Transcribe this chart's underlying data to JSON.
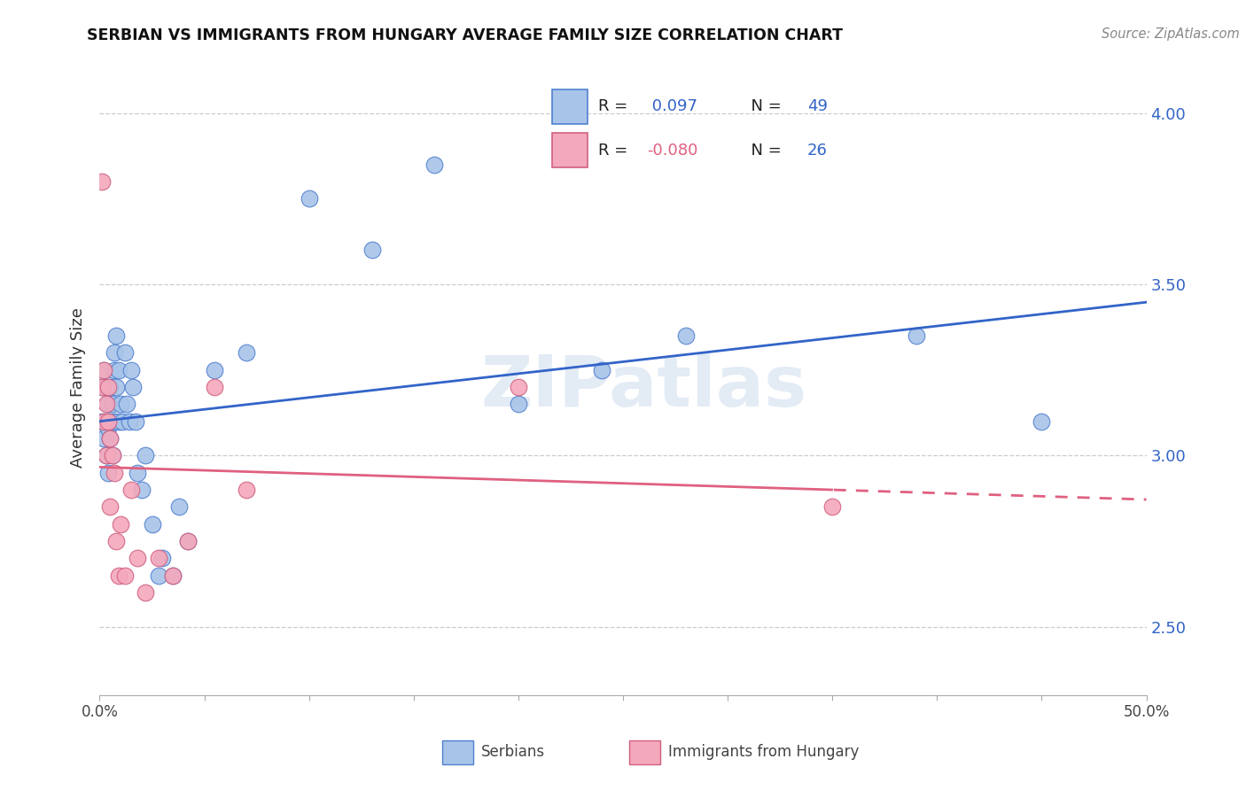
{
  "title": "SERBIAN VS IMMIGRANTS FROM HUNGARY AVERAGE FAMILY SIZE CORRELATION CHART",
  "source": "Source: ZipAtlas.com",
  "ylabel": "Average Family Size",
  "watermark": "ZIPatlas",
  "legend_serbian_R": "0.097",
  "legend_serbian_N": "49",
  "legend_hungary_R": "-0.080",
  "legend_hungary_N": "26",
  "blue_scatter_color": "#a8c4e8",
  "pink_scatter_color": "#f4a8bc",
  "blue_line_color": "#3264c8",
  "pink_line_color": "#e06080",
  "blue_edge_color": "#5080d0",
  "pink_edge_color": "#d06080",
  "ylim_min": 2.3,
  "ylim_max": 4.1,
  "xlim_min": 0.0,
  "xlim_max": 0.5,
  "yticks": [
    2.5,
    3.0,
    3.5,
    4.0
  ],
  "xticks": [
    0.0,
    0.05,
    0.1,
    0.15,
    0.2,
    0.25,
    0.3,
    0.35,
    0.4,
    0.45,
    0.5
  ],
  "xtick_labels": [
    "0.0%",
    "",
    "",
    "",
    "",
    "",
    "",
    "",
    "",
    "",
    "50.0%"
  ],
  "right_ytick_labels": [
    "2.50",
    "3.00",
    "3.50",
    "4.00"
  ],
  "serbian_points_x": [
    0.001,
    0.001,
    0.002,
    0.002,
    0.003,
    0.003,
    0.003,
    0.004,
    0.004,
    0.004,
    0.005,
    0.005,
    0.005,
    0.006,
    0.006,
    0.007,
    0.007,
    0.007,
    0.008,
    0.008,
    0.009,
    0.009,
    0.01,
    0.011,
    0.012,
    0.013,
    0.014,
    0.015,
    0.016,
    0.017,
    0.018,
    0.02,
    0.022,
    0.025,
    0.028,
    0.03,
    0.035,
    0.038,
    0.042,
    0.055,
    0.07,
    0.1,
    0.13,
    0.16,
    0.2,
    0.24,
    0.28,
    0.39,
    0.45
  ],
  "serbian_points_y": [
    3.1,
    3.2,
    3.05,
    3.25,
    3.1,
    3.0,
    3.2,
    3.15,
    3.08,
    2.95,
    3.2,
    3.1,
    3.05,
    3.15,
    3.0,
    3.3,
    3.1,
    3.25,
    3.35,
    3.2,
    3.25,
    3.1,
    3.15,
    3.1,
    3.3,
    3.15,
    3.1,
    3.25,
    3.2,
    3.1,
    2.95,
    2.9,
    3.0,
    2.8,
    2.65,
    2.7,
    2.65,
    2.85,
    2.75,
    3.25,
    3.3,
    3.75,
    3.6,
    3.85,
    3.15,
    3.25,
    3.35,
    3.35,
    3.1
  ],
  "hungary_points_x": [
    0.001,
    0.001,
    0.002,
    0.002,
    0.003,
    0.003,
    0.004,
    0.004,
    0.005,
    0.005,
    0.006,
    0.007,
    0.008,
    0.009,
    0.01,
    0.012,
    0.015,
    0.018,
    0.022,
    0.028,
    0.035,
    0.042,
    0.055,
    0.07,
    0.2,
    0.35
  ],
  "hungary_points_y": [
    3.8,
    3.2,
    3.25,
    3.1,
    3.15,
    3.0,
    3.2,
    3.1,
    3.05,
    2.85,
    3.0,
    2.95,
    2.75,
    2.65,
    2.8,
    2.65,
    2.9,
    2.7,
    2.6,
    2.7,
    2.65,
    2.75,
    3.2,
    2.9,
    3.2,
    2.85
  ]
}
